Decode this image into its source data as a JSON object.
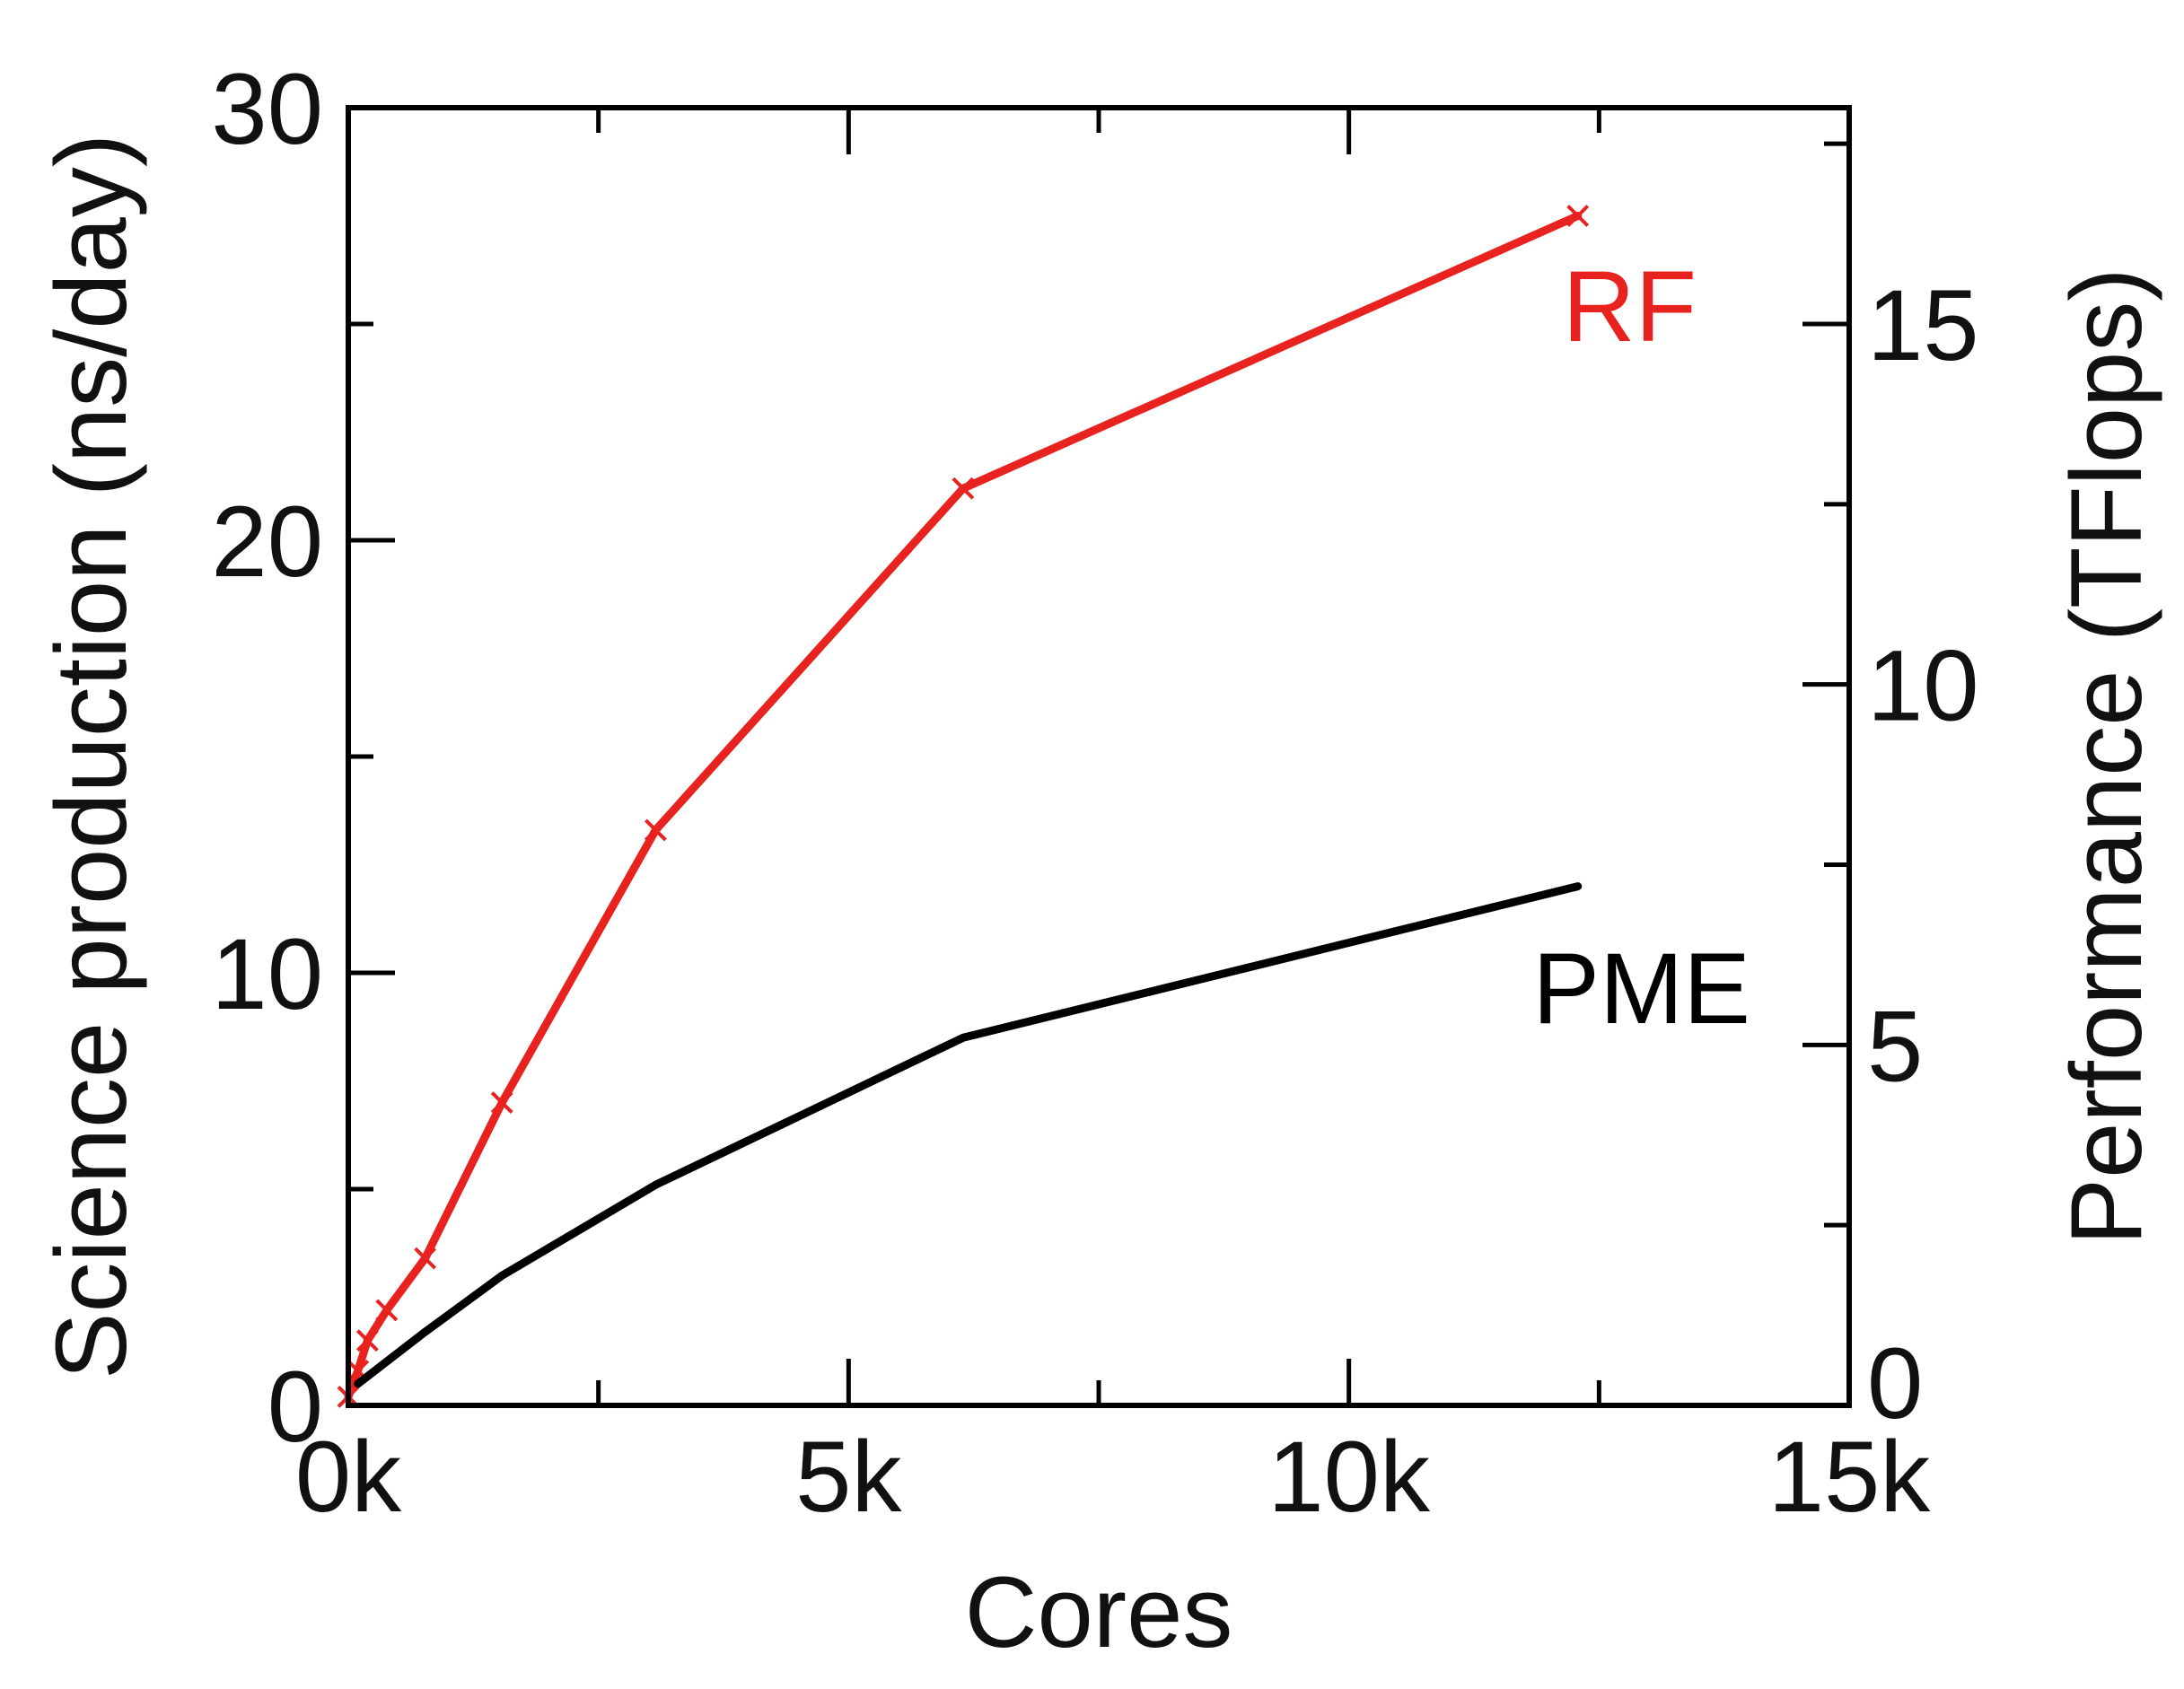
{
  "chart_data": {
    "type": "line",
    "title": "",
    "xlabel": "Cores",
    "ylabel": "Science production (ns/day)",
    "y2label": "Performance (TFlops)",
    "xlim": [
      0,
      15000
    ],
    "ylim": [
      0,
      30
    ],
    "y2lim": [
      0,
      18
    ],
    "x_ticks": [
      0,
      5000,
      10000,
      15000
    ],
    "x_tick_labels": [
      "0k",
      "5k",
      "10k",
      "15k"
    ],
    "y_ticks": [
      0,
      10,
      20,
      30
    ],
    "y_tick_labels": [
      "0",
      "10",
      "20",
      "30"
    ],
    "y2_ticks": [
      0,
      5,
      10,
      15
    ],
    "y2_tick_labels": [
      "0",
      "5",
      "10",
      "15"
    ],
    "grid": false,
    "series": [
      {
        "name": "RF",
        "color": "#e8231f",
        "marker": "x",
        "x": [
          0,
          96,
          192,
          384,
          768,
          1536,
          3072,
          6144,
          12288
        ],
        "values": [
          0.2,
          0.8,
          1.5,
          2.2,
          3.4,
          7.0,
          13.3,
          21.2,
          27.5
        ]
      },
      {
        "name": "PME",
        "color": "#000000",
        "marker": "none",
        "x": [
          96,
          768,
          1536,
          3072,
          6144,
          12288
        ],
        "values": [
          0.5,
          1.7,
          3.0,
          5.1,
          8.5,
          12.0
        ]
      }
    ]
  }
}
